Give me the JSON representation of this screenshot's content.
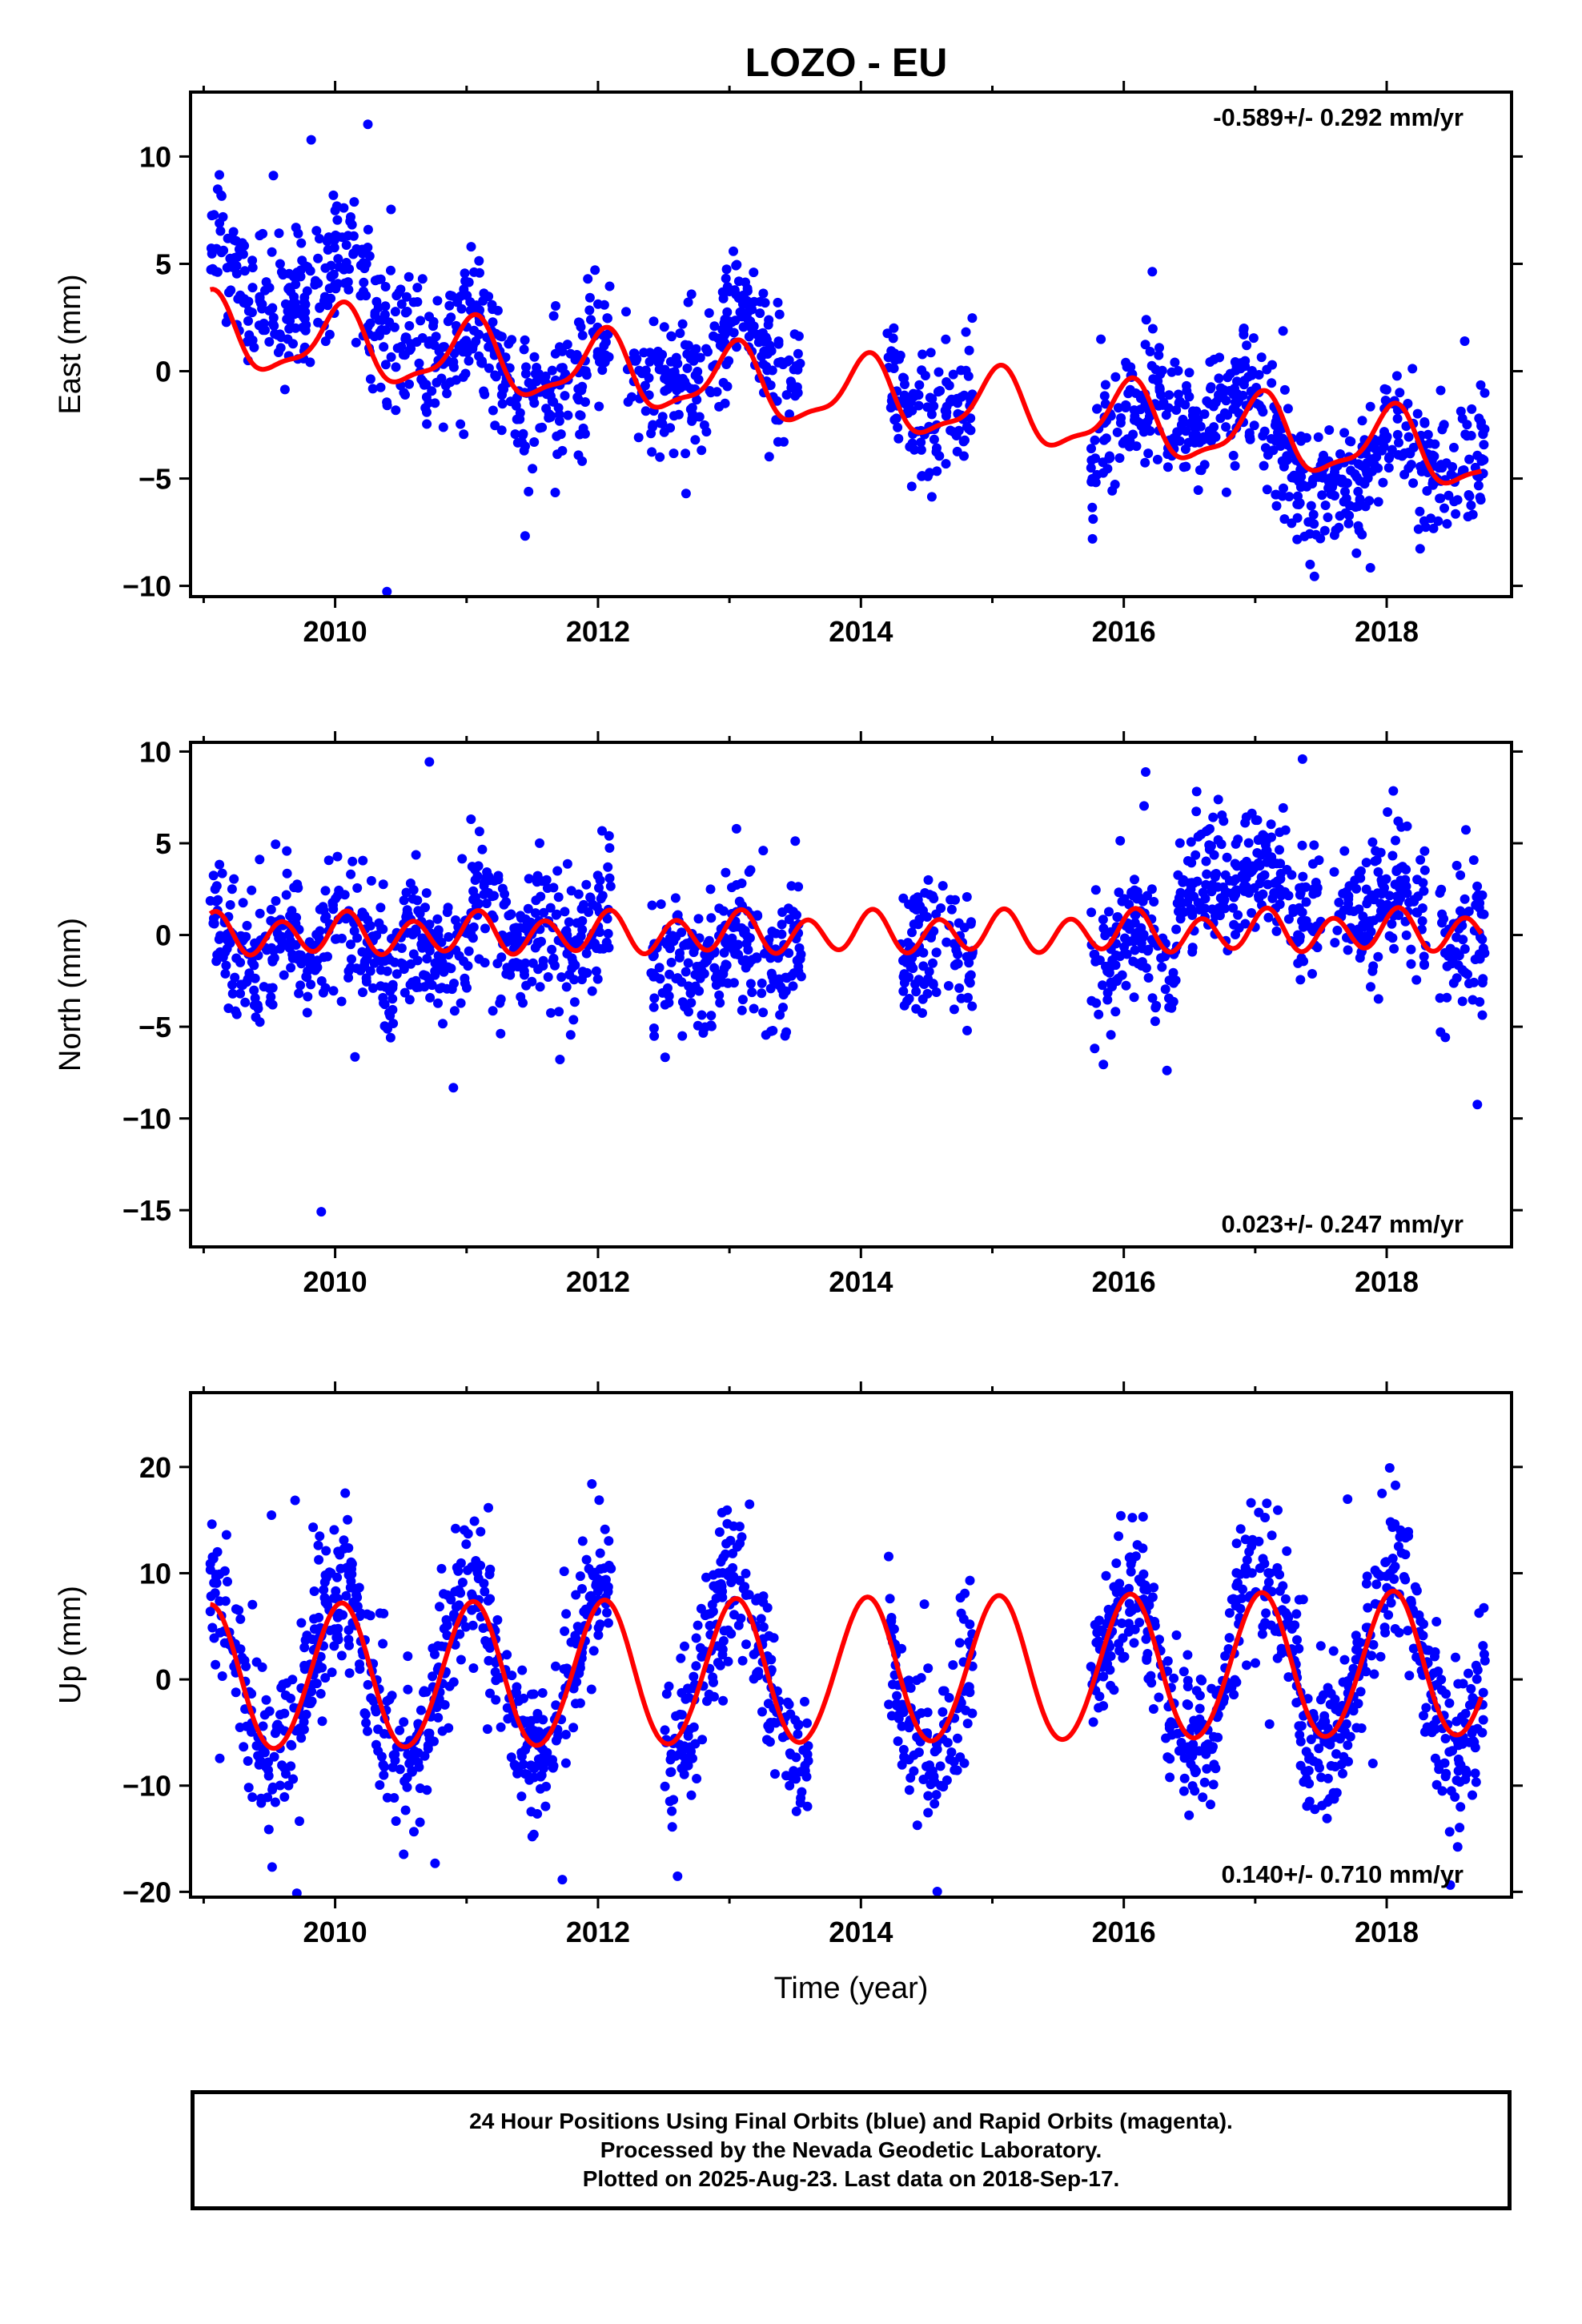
{
  "title": "LOZO - EU",
  "colors": {
    "data_points": "#0000ff",
    "model_curve": "#ff0000",
    "frame": "#000000"
  },
  "chart_data": [
    {
      "type": "scatter",
      "name": "east",
      "ylabel": "East (mm)",
      "xlabel": "",
      "xlim": [
        2008.9,
        2018.95
      ],
      "ylim": [
        -10.5,
        13
      ],
      "xticks": [
        2010,
        2012,
        2014,
        2016,
        2018
      ],
      "yticks": [
        -10,
        -5,
        0,
        5,
        10
      ],
      "rate_label": "-0.589+/- 0.292 mm/yr",
      "rate_label_position": "top-right",
      "grid": false,
      "model": {
        "offset": 1.8,
        "trend": -0.589,
        "annual_amp": 1.6,
        "semiannual_amp": 0.5,
        "t_ref": 2009.0
      },
      "scatter_density": {
        "n": 1500,
        "spread": 1.5,
        "annual_amp": 1.8
      },
      "data_segments": [
        [
          2009.05,
          2009.95,
          2.8
        ],
        [
          2009.95,
          2010.6,
          2.5
        ],
        [
          2010.6,
          2011.2,
          0.0
        ],
        [
          2011.2,
          2012.1,
          -0.5
        ],
        [
          2012.2,
          2013.0,
          0.5
        ],
        [
          2013.0,
          2013.55,
          1.5
        ],
        [
          2014.2,
          2014.85,
          0.2
        ],
        [
          2015.75,
          2016.2,
          -2.0
        ],
        [
          2016.2,
          2016.95,
          1.0
        ],
        [
          2016.95,
          2017.6,
          -1.5
        ],
        [
          2017.6,
          2018.3,
          -2.0
        ],
        [
          2018.3,
          2018.75,
          -0.5
        ]
      ]
    },
    {
      "type": "scatter",
      "name": "north",
      "ylabel": "North (mm)",
      "xlabel": "",
      "xlim": [
        2008.9,
        2018.95
      ],
      "ylim": [
        -17,
        10.5
      ],
      "xticks": [
        2010,
        2012,
        2014,
        2016,
        2018
      ],
      "yticks": [
        -15,
        -10,
        -5,
        0,
        5,
        10
      ],
      "rate_label": "0.023+/- 0.247 mm/yr",
      "rate_label_position": "bottom-right",
      "grid": false,
      "model": {
        "offset": 0.0,
        "trend": 0.023,
        "annual_amp": 0.3,
        "semiannual_amp": 1.0,
        "t_ref": 2009.0
      },
      "scatter_density": {
        "n": 1500,
        "spread": 1.8,
        "annual_amp": 0.5
      },
      "data_segments": [
        [
          2009.05,
          2010.0,
          -0.5
        ],
        [
          2010.0,
          2011.0,
          -0.8
        ],
        [
          2011.0,
          2012.1,
          0.0
        ],
        [
          2012.4,
          2013.55,
          -1.0
        ],
        [
          2014.3,
          2014.85,
          -0.5
        ],
        [
          2015.75,
          2016.4,
          -1.0
        ],
        [
          2016.4,
          2017.5,
          2.5
        ],
        [
          2017.6,
          2018.3,
          1.5
        ],
        [
          2018.4,
          2018.75,
          -0.5
        ]
      ]
    },
    {
      "type": "scatter",
      "name": "up",
      "ylabel": "Up (mm)",
      "xlabel": "Time (year)",
      "xlim": [
        2008.9,
        2018.95
      ],
      "ylim": [
        -20.5,
        27
      ],
      "xticks": [
        2010,
        2012,
        2014,
        2016,
        2018
      ],
      "yticks": [
        -20,
        -10,
        0,
        10,
        20
      ],
      "rate_label": "0.140+/- 0.710 mm/yr",
      "rate_label_position": "bottom-right",
      "grid": false,
      "model": {
        "offset": 0.0,
        "trend": 0.14,
        "annual_amp": 6.8,
        "semiannual_amp": 0.3,
        "t_ref": 2009.0
      },
      "scatter_density": {
        "n": 1600,
        "spread": 3.5,
        "annual_amp": 9.0
      },
      "data_segments": [
        [
          2009.05,
          2010.0,
          0.0
        ],
        [
          2010.0,
          2011.0,
          0.0
        ],
        [
          2011.0,
          2012.1,
          0.0
        ],
        [
          2012.5,
          2013.6,
          0.0
        ],
        [
          2014.2,
          2014.85,
          0.0
        ],
        [
          2015.75,
          2016.95,
          0.0
        ],
        [
          2016.95,
          2018.0,
          0.0
        ],
        [
          2018.0,
          2018.75,
          0.0
        ]
      ]
    }
  ],
  "footer": {
    "line1": "24 Hour Positions Using Final Orbits (blue) and Rapid Orbits (magenta).",
    "line2": "Processed by the Nevada Geodetic Laboratory.",
    "line3": "Plotted on 2025-Aug-23. Last data on 2018-Sep-17."
  }
}
